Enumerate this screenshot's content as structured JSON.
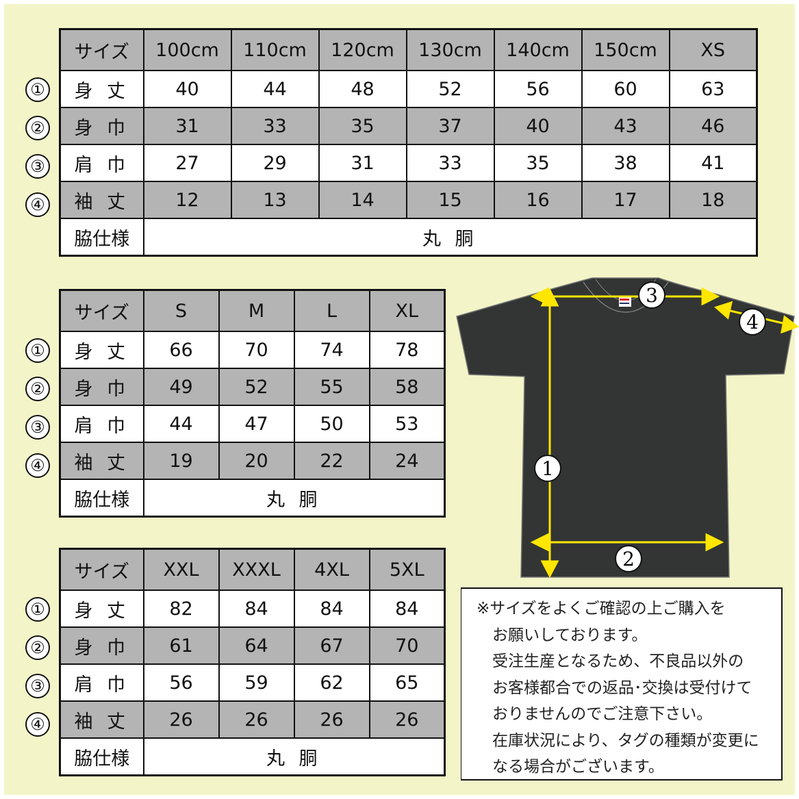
{
  "row_labels": [
    "身 丈",
    "身 巾",
    "肩 巾",
    "袖 丈"
  ],
  "size_header": "サイズ",
  "side_label": "脇仕様",
  "side_value": "丸 胴",
  "circle_numbers": [
    "①",
    "②",
    "③",
    "④"
  ],
  "tables": [
    {
      "sizes": [
        "100cm",
        "110cm",
        "120cm",
        "130cm",
        "140cm",
        "150cm",
        "XS"
      ],
      "rows": [
        [
          40,
          44,
          48,
          52,
          56,
          60,
          63
        ],
        [
          31,
          33,
          35,
          37,
          40,
          43,
          46
        ],
        [
          27,
          29,
          31,
          33,
          35,
          38,
          41
        ],
        [
          12,
          13,
          14,
          15,
          16,
          17,
          18
        ]
      ]
    },
    {
      "sizes": [
        "S",
        "M",
        "L",
        "XL"
      ],
      "rows": [
        [
          66,
          70,
          74,
          78
        ],
        [
          49,
          52,
          55,
          58
        ],
        [
          44,
          47,
          50,
          53
        ],
        [
          19,
          20,
          22,
          24
        ]
      ]
    },
    {
      "sizes": [
        "XXL",
        "XXXL",
        "4XL",
        "5XL"
      ],
      "rows": [
        [
          82,
          84,
          84,
          84
        ],
        [
          61,
          64,
          67,
          70
        ],
        [
          56,
          59,
          62,
          65
        ],
        [
          26,
          26,
          26,
          26
        ]
      ]
    }
  ],
  "diagram_marks": [
    "1",
    "2",
    "3",
    "4"
  ],
  "note_lines": [
    "※サイズをよくご確認の上ご購入を",
    "　お願いしております。",
    "　受注生産となるため、不良品以外の",
    "　お客様都合での返品･交換は受付けて",
    "　おりませんのでご注意下さい。",
    "　在庫状況により、タグの種類が変更に",
    "　なる場合がございます。"
  ],
  "colors": {
    "background": "#f3f5c8",
    "gray_row": "#b4b4b4",
    "shirt": "#323534",
    "arrow": "#ffe600"
  }
}
